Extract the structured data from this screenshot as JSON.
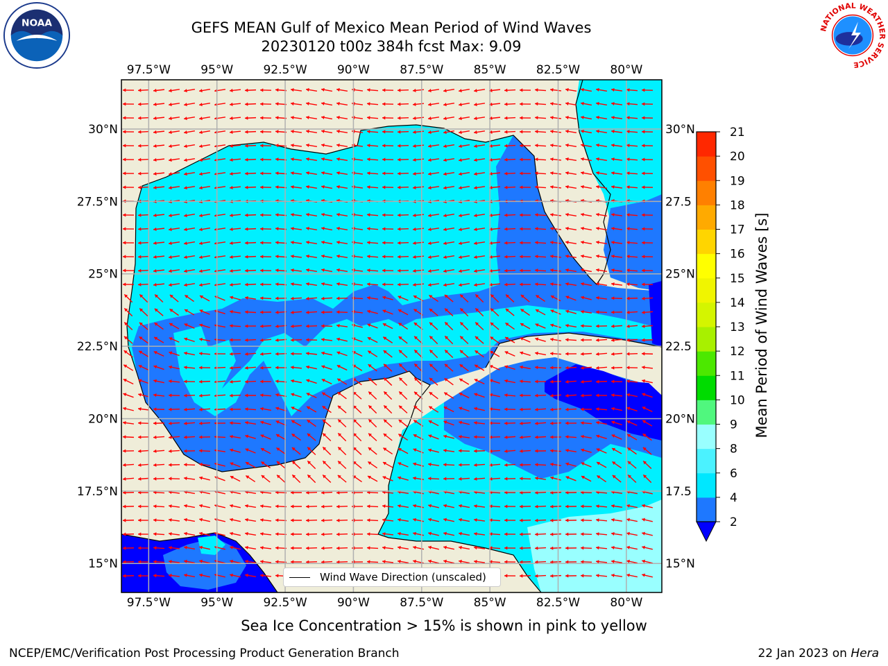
{
  "header": {
    "title_line1": "GEFS MEAN Gulf of Mexico Mean Period of Wind Waves",
    "title_line2": "20230120 t00z 384h fcst   Max: 9.09"
  },
  "logos": {
    "noaa": "NOAA",
    "nws_ring": "NATIONAL WEATHER SERVICE"
  },
  "map": {
    "lon_min": -98.5,
    "lon_max": -78.7,
    "lat_min": 14.0,
    "lat_max": 31.7,
    "lon_ticks": [
      {
        "value": -97.5,
        "label": "97.5°W"
      },
      {
        "value": -95,
        "label": "95°W"
      },
      {
        "value": -92.5,
        "label": "92.5°W"
      },
      {
        "value": -90,
        "label": "90°W"
      },
      {
        "value": -87.5,
        "label": "87.5°W"
      },
      {
        "value": -85,
        "label": "85°W"
      },
      {
        "value": -82.5,
        "label": "82.5°W"
      },
      {
        "value": -80,
        "label": "80°W"
      }
    ],
    "lat_ticks_left": [
      {
        "value": 30,
        "label": "30°N"
      },
      {
        "value": 27.5,
        "label": "27.5°N"
      },
      {
        "value": 25,
        "label": "25°N"
      },
      {
        "value": 22.5,
        "label": "22.5°N"
      },
      {
        "value": 20,
        "label": "20°N"
      },
      {
        "value": 17.5,
        "label": "17.5°N"
      },
      {
        "value": 15,
        "label": "15°N"
      }
    ],
    "lat_ticks_right": [
      {
        "value": 30,
        "label": "30°N"
      },
      {
        "value": 27.5,
        "label": "27.5"
      },
      {
        "value": 25,
        "label": "25°N"
      },
      {
        "value": 22.5,
        "label": "22.5"
      },
      {
        "value": 20,
        "label": "20°N"
      },
      {
        "value": 17.5,
        "label": "17.5"
      },
      {
        "value": 15,
        "label": "15°N"
      }
    ],
    "land_color": "#efedd9",
    "arrow_color": "#ff0000"
  },
  "colorbar": {
    "title": "Mean Period of Wind Waves [s]",
    "levels": [
      2,
      4,
      6,
      8,
      9,
      10,
      11,
      12,
      13,
      14,
      15,
      16,
      17,
      18,
      19,
      20,
      21
    ],
    "colors": [
      "#1e78ff",
      "#00e7ff",
      "#4bf2ff",
      "#99ffff",
      "#50f77e",
      "#00dc00",
      "#4ce800",
      "#a8f000",
      "#d4f500",
      "#f0f500",
      "#ffff00",
      "#ffd500",
      "#ffaa00",
      "#ff8000",
      "#ff5000",
      "#ff2800",
      "#ff0000"
    ],
    "under_color": "#0000ff"
  },
  "legend": {
    "label": "Wind Wave Direction (unscaled)"
  },
  "note": "Sea Ice Concentration > 15% is shown in pink to yellow",
  "footer": {
    "left": "NCEP/EMC/Verification Post Processing Product Generation Branch",
    "date": "22 Jan 2023 on ",
    "machine": "Hera"
  }
}
